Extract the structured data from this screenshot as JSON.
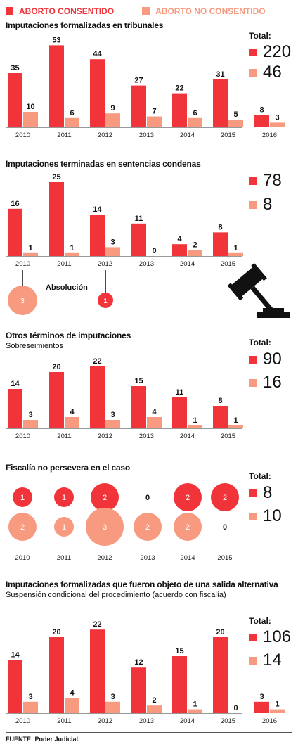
{
  "colors": {
    "consentido": "#f0343a",
    "no_consentido": "#f79a80",
    "axis": "#999999"
  },
  "legend": {
    "consentido": "ABORTO CONSENTIDO",
    "no_consentido": "ABORTO NO CONSENTIDO"
  },
  "total_label": "Total:",
  "source": "FUENTE: Poder Judicial.",
  "sections": [
    {
      "title": "Imputaciones formalizadas en tribunales",
      "subtitle": "",
      "totals": [
        "220",
        "46"
      ]
    },
    {
      "title": "Imputaciones terminadas en sentencias condenas",
      "subtitle": "",
      "totals": [
        "78",
        "8"
      ],
      "absolucion_label": "Absolución"
    },
    {
      "title": "Otros términos de imputaciones",
      "subtitle": "Sobreseimientos",
      "totals": [
        "90",
        "16"
      ]
    },
    {
      "title": "Fiscalía no persevera en el caso",
      "subtitle": "",
      "totals": [
        "8",
        "10"
      ]
    },
    {
      "title": "Imputaciones formalizadas que fueron objeto de una salida alternativa",
      "subtitle": "Suspensión condicional del procedimiento (acuerdo con fiscalía)",
      "totals": [
        "106",
        "14"
      ]
    }
  ],
  "chart_data": [
    {
      "type": "bar",
      "title": "Imputaciones formalizadas en tribunales",
      "categories": [
        "2010",
        "2011",
        "2012",
        "2013",
        "2014",
        "2015",
        "2016"
      ],
      "series": [
        {
          "name": "ABORTO CONSENTIDO",
          "values": [
            35,
            53,
            44,
            27,
            22,
            31,
            8
          ]
        },
        {
          "name": "ABORTO NO CONSENTIDO",
          "values": [
            10,
            6,
            9,
            7,
            6,
            5,
            3
          ]
        }
      ]
    },
    {
      "type": "bar",
      "title": "Imputaciones terminadas en sentencias condenas",
      "categories": [
        "2010",
        "2011",
        "2012",
        "2013",
        "2014",
        "2015"
      ],
      "series": [
        {
          "name": "ABORTO CONSENTIDO",
          "values": [
            16,
            25,
            14,
            11,
            4,
            8
          ]
        },
        {
          "name": "ABORTO NO CONSENTIDO",
          "values": [
            1,
            1,
            3,
            0,
            2,
            1
          ]
        }
      ],
      "absolucion": [
        {
          "category": "2010",
          "series": "ABORTO NO CONSENTIDO",
          "value": 3
        },
        {
          "category": "2012",
          "series": "ABORTO CONSENTIDO",
          "value": 1
        }
      ]
    },
    {
      "type": "bar",
      "title": "Otros términos de imputaciones",
      "subtitle": "Sobreseimientos",
      "categories": [
        "2010",
        "2011",
        "2012",
        "2013",
        "2014",
        "2015"
      ],
      "series": [
        {
          "name": "ABORTO CONSENTIDO",
          "values": [
            14,
            20,
            22,
            15,
            11,
            8
          ]
        },
        {
          "name": "ABORTO NO CONSENTIDO",
          "values": [
            3,
            4,
            3,
            4,
            1,
            1
          ]
        }
      ]
    },
    {
      "type": "scatter",
      "title": "Fiscalía no persevera en el caso",
      "categories": [
        "2010",
        "2011",
        "2012",
        "2013",
        "2014",
        "2015"
      ],
      "series": [
        {
          "name": "ABORTO CONSENTIDO",
          "values": [
            1,
            1,
            2,
            0,
            2,
            2
          ]
        },
        {
          "name": "ABORTO NO CONSENTIDO",
          "values": [
            2,
            1,
            3,
            2,
            2,
            0
          ]
        }
      ]
    },
    {
      "type": "bar",
      "title": "Imputaciones formalizadas que fueron objeto de una salida alternativa",
      "subtitle": "Suspensión condicional del procedimiento (acuerdo con fiscalía)",
      "categories": [
        "2010",
        "2011",
        "2012",
        "2013",
        "2014",
        "2015",
        "2016"
      ],
      "series": [
        {
          "name": "ABORTO CONSENTIDO",
          "values": [
            14,
            20,
            22,
            12,
            15,
            20,
            3
          ]
        },
        {
          "name": "ABORTO NO CONSENTIDO",
          "values": [
            3,
            4,
            3,
            2,
            1,
            0,
            1
          ]
        }
      ]
    }
  ]
}
